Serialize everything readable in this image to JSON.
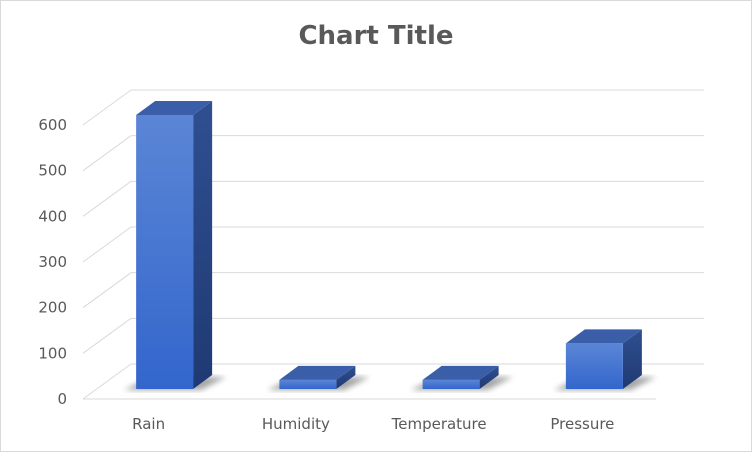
{
  "chart_data": {
    "type": "bar",
    "title": "Chart Title",
    "categories": [
      "Rain",
      "Humidity",
      "Temperature",
      "Pressure"
    ],
    "values": [
      600,
      20,
      20,
      100
    ],
    "ylim": [
      0,
      600
    ],
    "yticks": [
      0,
      100,
      200,
      300,
      400,
      500,
      600
    ],
    "grid": true,
    "legend": "none",
    "style": "3d-column",
    "colors": {
      "bar_front": "#4472c4",
      "bar_side": "#2f4f8f",
      "bar_top": "#3b5ea8",
      "grid": "#d9d9d9",
      "text": "#595959"
    }
  }
}
